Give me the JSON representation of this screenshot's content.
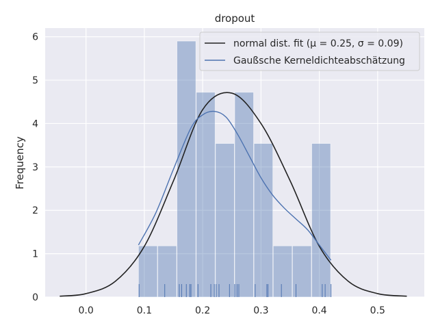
{
  "chart_data": {
    "type": "bar",
    "title": "dropout",
    "xlabel": "",
    "ylabel": "Frequency",
    "xlim": [
      -0.07,
      0.58
    ],
    "ylim": [
      0,
      6.2
    ],
    "xticks": [
      "0.0",
      "0.1",
      "0.2",
      "0.3",
      "0.4",
      "0.5"
    ],
    "yticks": [
      "0",
      "1",
      "2",
      "3",
      "4",
      "5",
      "6"
    ],
    "grid": true,
    "legend_position": "top-right",
    "histogram": {
      "bin_edges": [
        0.09,
        0.123,
        0.156,
        0.189,
        0.222,
        0.255,
        0.288,
        0.321,
        0.354,
        0.387,
        0.42
      ],
      "values": [
        1.18,
        1.18,
        5.9,
        4.72,
        3.54,
        4.72,
        3.54,
        1.18,
        1.18,
        3.54
      ],
      "color": "#4C72B0"
    },
    "rug": [
      0.091,
      0.135,
      0.16,
      0.164,
      0.172,
      0.178,
      0.18,
      0.192,
      0.214,
      0.22,
      0.223,
      0.228,
      0.246,
      0.255,
      0.259,
      0.262,
      0.29,
      0.31,
      0.312,
      0.335,
      0.36,
      0.405,
      0.41,
      0.42
    ],
    "series": [
      {
        "name": "normal dist. fit (μ = 0.25, σ = 0.09)",
        "color": "#222222",
        "x": [
          -0.045,
          0.0,
          0.05,
          0.1,
          0.15,
          0.2,
          0.25,
          0.3,
          0.35,
          0.4,
          0.45,
          0.5,
          0.55
        ],
        "y": [
          0.02,
          0.08,
          0.36,
          1.17,
          2.68,
          4.32,
          4.7,
          4.0,
          2.68,
          1.17,
          0.36,
          0.08,
          0.02
        ]
      },
      {
        "name": "Gaußsche Kerneldichteabschätzung",
        "color": "#4C72B0",
        "x": [
          0.09,
          0.12,
          0.15,
          0.18,
          0.2,
          0.22,
          0.24,
          0.26,
          0.28,
          0.3,
          0.32,
          0.34,
          0.36,
          0.38,
          0.4,
          0.42
        ],
        "y": [
          1.2,
          1.95,
          2.95,
          3.9,
          4.2,
          4.28,
          4.15,
          3.75,
          3.25,
          2.75,
          2.35,
          2.05,
          1.8,
          1.55,
          1.2,
          0.85
        ]
      }
    ]
  }
}
